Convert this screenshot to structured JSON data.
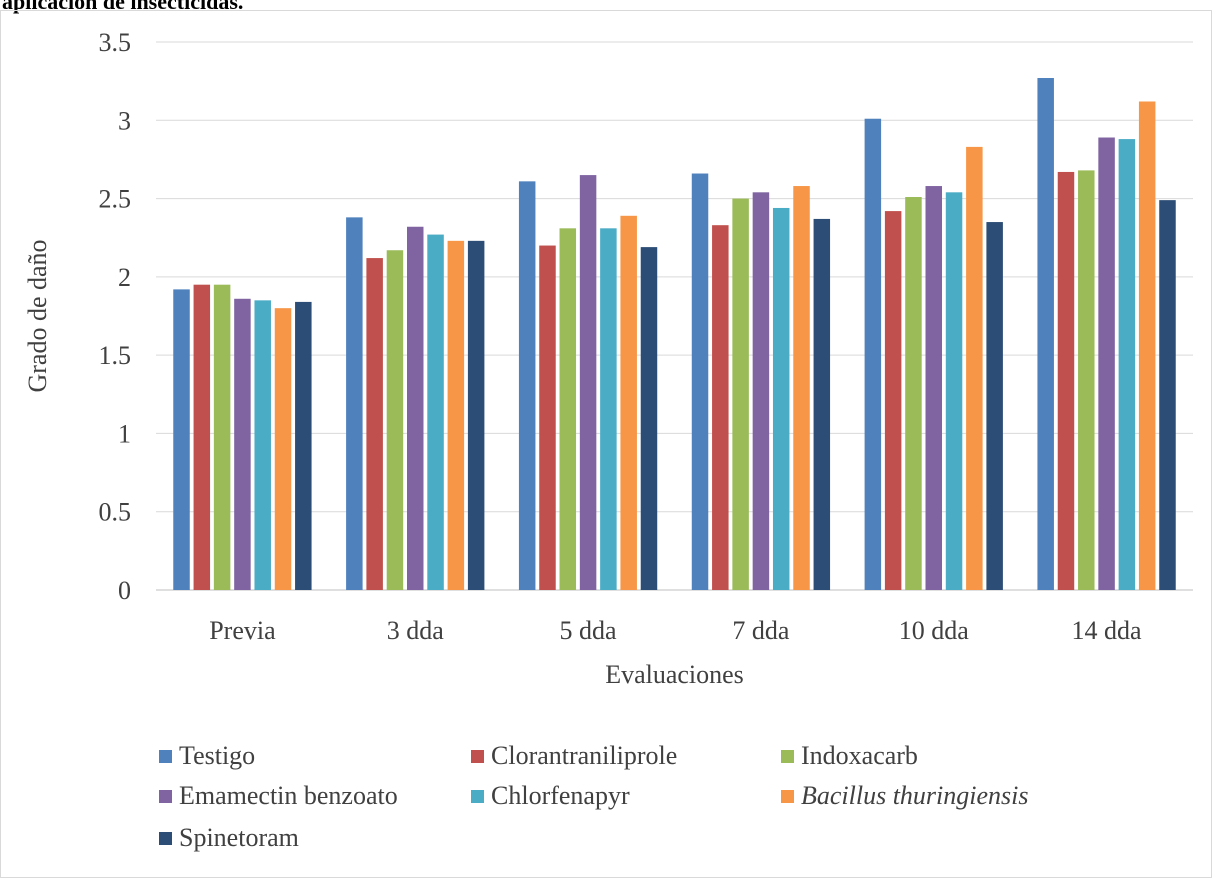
{
  "caption": "aplicación de insecticidas.",
  "chart_data": {
    "type": "bar",
    "xlabel": "Evaluaciones",
    "ylabel": "Grado de daño",
    "ylim": [
      0,
      3.5
    ],
    "yticks": [
      "0",
      "0.5",
      "1",
      "1.5",
      "2",
      "2.5",
      "3",
      "3.5"
    ],
    "grid": true,
    "legend_position": "bottom",
    "categories": [
      "Previa",
      "3 dda",
      "5 dda",
      "7 dda",
      "10 dda",
      "14 dda"
    ],
    "series": [
      {
        "name": "Testigo",
        "color": "#4f81bd",
        "italic": false,
        "values": [
          1.92,
          2.38,
          2.61,
          2.66,
          3.01,
          3.27
        ]
      },
      {
        "name": "Clorantraniliprole",
        "color": "#c0504d",
        "italic": false,
        "values": [
          1.95,
          2.12,
          2.2,
          2.33,
          2.42,
          2.67
        ]
      },
      {
        "name": "Indoxacarb",
        "color": "#9bbb59",
        "italic": false,
        "values": [
          1.95,
          2.17,
          2.31,
          2.5,
          2.51,
          2.68
        ]
      },
      {
        "name": "Emamectin benzoato",
        "color": "#8064a2",
        "italic": false,
        "values": [
          1.86,
          2.32,
          2.65,
          2.54,
          2.58,
          2.89
        ]
      },
      {
        "name": "Chlorfenapyr",
        "color": "#4bacc6",
        "italic": false,
        "values": [
          1.85,
          2.27,
          2.31,
          2.44,
          2.54,
          2.88
        ]
      },
      {
        "name": "Bacillus thuringiensis",
        "color": "#f79646",
        "italic": true,
        "values": [
          1.8,
          2.23,
          2.39,
          2.58,
          2.83,
          3.12
        ]
      },
      {
        "name": "Spinetoram",
        "color": "#2c4d75",
        "italic": false,
        "values": [
          1.84,
          2.23,
          2.19,
          2.37,
          2.35,
          2.49
        ]
      }
    ]
  }
}
